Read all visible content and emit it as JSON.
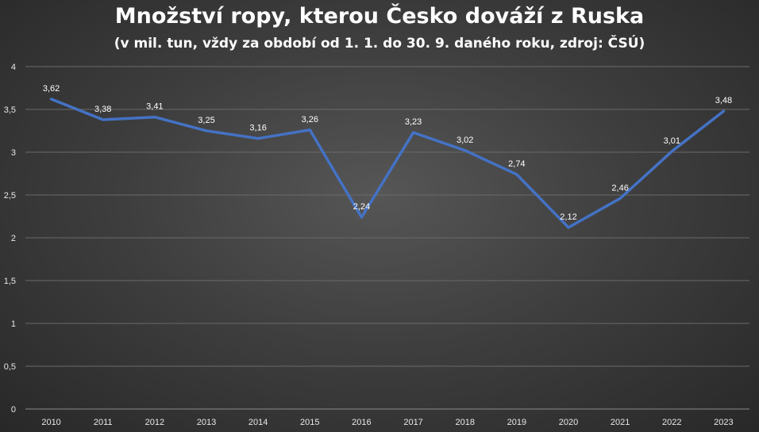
{
  "chart_data": {
    "type": "line",
    "title": "Množství ropy, kterou Česko dováží z Ruska",
    "subtitle": "(v mil. tun, vždy za období od 1. 1. do 30. 9. daného roku, zdroj: ČSÚ)",
    "categories": [
      "2010",
      "2011",
      "2012",
      "2013",
      "2014",
      "2015",
      "2016",
      "2017",
      "2018",
      "2019",
      "2020",
      "2021",
      "2022",
      "2023"
    ],
    "series": [
      {
        "values": [
          3.62,
          3.38,
          3.41,
          3.25,
          3.16,
          3.26,
          2.24,
          3.23,
          3.02,
          2.74,
          2.12,
          2.46,
          3.01,
          3.48
        ],
        "data_labels": [
          "3,62",
          "3,38",
          "3,41",
          "3,25",
          "3,16",
          "3,26",
          "2,24",
          "3,23",
          "3,02",
          "2,74",
          "2,12",
          "2,46",
          "3,01",
          "3,48"
        ],
        "color": "#4472c4"
      }
    ],
    "ylim": [
      0,
      4
    ],
    "yticks": [
      0,
      0.5,
      1,
      1.5,
      2,
      2.5,
      3,
      3.5,
      4
    ],
    "ytick_labels": [
      "0",
      "0,5",
      "1",
      "1,5",
      "2",
      "2,5",
      "3",
      "3,5",
      "4"
    ],
    "grid": true,
    "grid_color": "#6a6a6a",
    "xlabel": "",
    "ylabel": ""
  }
}
